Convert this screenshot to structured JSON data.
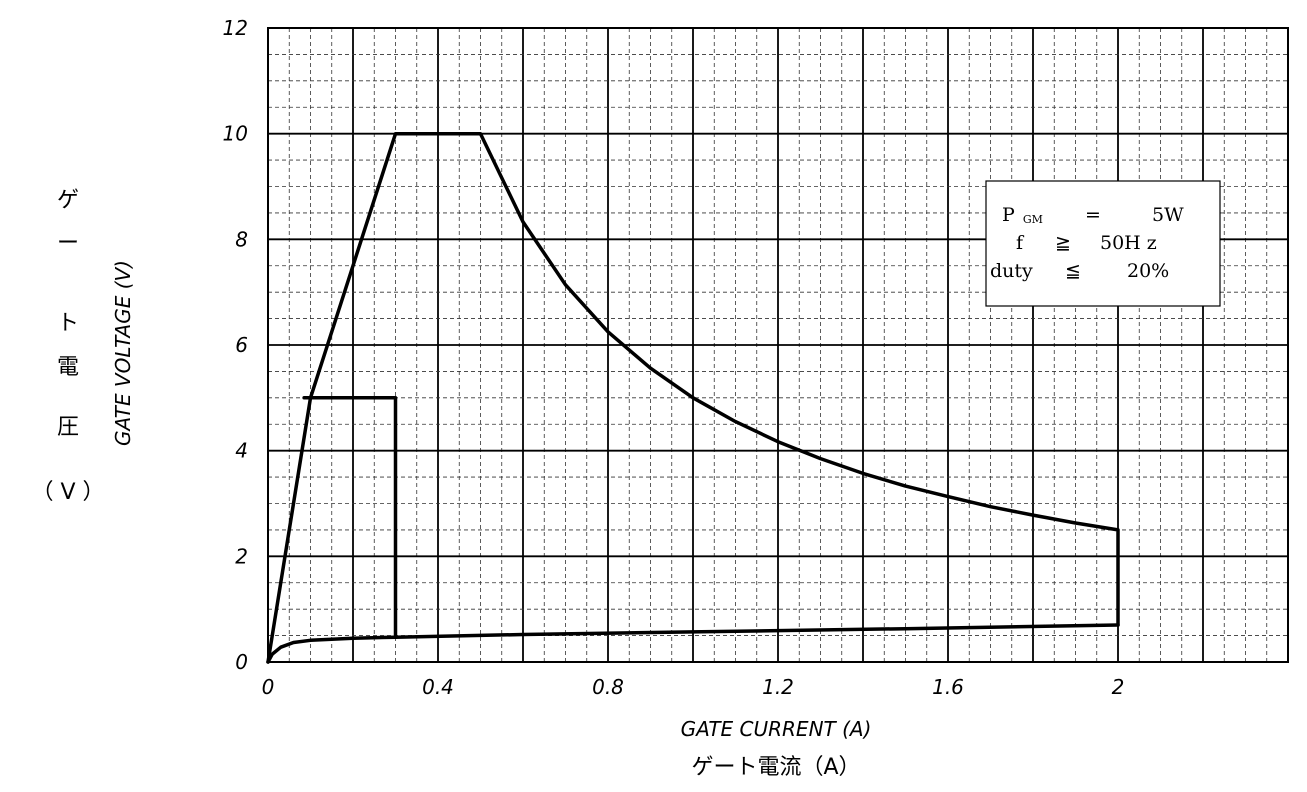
{
  "chart_data": {
    "type": "line",
    "xlabel": "GATE CURRENT (A)",
    "xlabel_jp": "ゲート電流（A）",
    "ylabel": "GATE VOLTAGE (V)",
    "ylabel_jp": [
      "ゲ",
      "ー",
      "ト",
      "電",
      "圧",
      "（ V ）"
    ],
    "xlim": [
      0,
      2.4
    ],
    "ylim": [
      0,
      12
    ],
    "x_ticks": [
      {
        "value": 0,
        "label": "0"
      },
      {
        "value": 0.4,
        "label": "0.4"
      },
      {
        "value": 0.8,
        "label": "0.8"
      },
      {
        "value": 1.2,
        "label": "1.2"
      },
      {
        "value": 1.6,
        "label": "1.6"
      },
      {
        "value": 2.0,
        "label": "2"
      }
    ],
    "y_ticks": [
      {
        "value": 0,
        "label": "0"
      },
      {
        "value": 2,
        "label": "2"
      },
      {
        "value": 4,
        "label": "4"
      },
      {
        "value": 6,
        "label": "6"
      },
      {
        "value": 8,
        "label": "8"
      },
      {
        "value": 10,
        "label": "10"
      },
      {
        "value": 12,
        "label": "12"
      }
    ],
    "grid": {
      "major_x_step": 0.2,
      "minor_x_step": 0.05,
      "major_y_step": 2,
      "minor_y_step": 0.5,
      "major_style": "solid",
      "minor_style": "dashed"
    },
    "series": [
      {
        "points": [
          [
            0,
            0
          ],
          [
            0.1,
            5
          ],
          [
            0.3,
            10
          ],
          [
            0.5,
            10
          ],
          [
            0.6,
            8.33
          ],
          [
            0.7,
            7.14
          ],
          [
            0.8,
            6.25
          ],
          [
            0.9,
            5.56
          ],
          [
            1.0,
            5.0
          ],
          [
            1.1,
            4.55
          ],
          [
            1.2,
            4.17
          ],
          [
            1.3,
            3.85
          ],
          [
            1.4,
            3.57
          ],
          [
            1.5,
            3.33
          ],
          [
            1.6,
            3.13
          ],
          [
            1.7,
            2.94
          ],
          [
            1.8,
            2.78
          ],
          [
            1.9,
            2.63
          ],
          [
            2.0,
            2.5
          ],
          [
            2.0,
            0.7
          ]
        ]
      },
      {
        "points": [
          [
            0,
            0
          ],
          [
            0.01,
            0.15
          ],
          [
            0.03,
            0.28
          ],
          [
            0.06,
            0.37
          ],
          [
            0.1,
            0.41
          ],
          [
            0.2,
            0.45
          ],
          [
            0.3,
            0.47
          ],
          [
            0.6,
            0.52
          ],
          [
            1.0,
            0.57
          ],
          [
            1.5,
            0.63
          ],
          [
            2.0,
            0.7
          ]
        ]
      },
      {
        "points": [
          [
            0.085,
            5
          ],
          [
            0.3,
            5
          ],
          [
            0.3,
            0.47
          ]
        ]
      }
    ],
    "legend": {
      "placement": "top-right",
      "lines": [
        {
          "left": "P",
          "sub": "GM",
          "op": "=",
          "right": "5W"
        },
        {
          "left": "f",
          "sub": "",
          "op": "≧",
          "right": "50H z"
        },
        {
          "left": "duty",
          "sub": "",
          "op": "≦",
          "right": "20%"
        }
      ]
    }
  }
}
